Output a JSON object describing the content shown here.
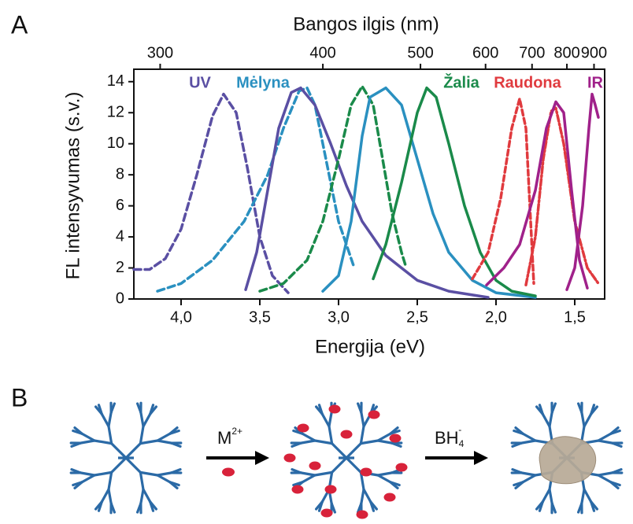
{
  "chart_data": {
    "type": "line",
    "panel_label": "A",
    "top_axis_label": "Bangos ilgis (nm)",
    "xlabel": "Energija (eV)",
    "ylabel": "FL intensyvumas (s.v.)",
    "xlim": [
      4.3,
      1.31
    ],
    "ylim": [
      0,
      14.8
    ],
    "xticks": [
      {
        "value": 4.0,
        "label": "4,0"
      },
      {
        "value": 3.5,
        "label": "3,5"
      },
      {
        "value": 3.0,
        "label": "3,0"
      },
      {
        "value": 2.5,
        "label": "2,5"
      },
      {
        "value": 2.0,
        "label": "2,0"
      },
      {
        "value": 1.5,
        "label": "1,5"
      }
    ],
    "yticks": [
      0,
      2,
      4,
      6,
      8,
      10,
      12,
      14
    ],
    "x2ticks": [
      300,
      400,
      500,
      600,
      700,
      800,
      900
    ],
    "annotations": [
      {
        "text": "UV",
        "color": "#5a4fa3"
      },
      {
        "text": "Mėlyna",
        "color": "#2a90c0"
      },
      {
        "text": "Žalia",
        "color": "#1a8a4a"
      },
      {
        "text": "Raudona",
        "color": "#e03a3e"
      },
      {
        "text": "IR",
        "color": "#a0218a"
      }
    ],
    "series": [
      {
        "color": "#5a4fa3",
        "dash": "9 5",
        "x": [
          4.3,
          4.2,
          4.1,
          4.0,
          3.9,
          3.8,
          3.73,
          3.65,
          3.58,
          3.5,
          3.42,
          3.32
        ],
        "values": [
          1.9,
          1.9,
          2.6,
          4.5,
          8,
          11.8,
          13.2,
          12,
          8.5,
          4,
          1.5,
          0.4
        ]
      },
      {
        "color": "#2a90c0",
        "dash": "9 5",
        "x": [
          4.15,
          4.0,
          3.8,
          3.6,
          3.45,
          3.35,
          3.25,
          3.2,
          3.15,
          3.1,
          3.0,
          2.9
        ],
        "values": [
          0.5,
          1.0,
          2.5,
          5,
          8,
          11,
          13.4,
          13.6,
          12.5,
          10,
          5,
          2
        ]
      },
      {
        "color": "#5a4fa3",
        "dash": "none",
        "x": [
          3.59,
          3.52,
          3.45,
          3.38,
          3.3,
          3.24,
          3.15,
          3.05,
          2.95,
          2.85,
          2.7,
          2.5,
          2.3,
          2.05
        ],
        "values": [
          0.6,
          3,
          7,
          11,
          13.3,
          13.6,
          12.5,
          10,
          7.3,
          5,
          2.8,
          1.2,
          0.5,
          0.1
        ]
      },
      {
        "color": "#1a8a4a",
        "dash": "9 5",
        "x": [
          3.5,
          3.35,
          3.2,
          3.1,
          3.0,
          2.92,
          2.85,
          2.78,
          2.72,
          2.66,
          2.6,
          2.57
        ],
        "values": [
          0.5,
          1,
          2.5,
          5,
          9,
          12.5,
          13.7,
          12.5,
          9,
          5.5,
          3,
          2
        ]
      },
      {
        "color": "#2a90c0",
        "dash": "none",
        "x": [
          3.1,
          3.0,
          2.92,
          2.85,
          2.8,
          2.7,
          2.6,
          2.5,
          2.4,
          2.3,
          2.15,
          2.0,
          1.75
        ],
        "values": [
          0.5,
          1.5,
          5,
          10.5,
          13,
          13.6,
          12.5,
          9,
          5.5,
          3,
          1.2,
          0.4,
          0.1
        ]
      },
      {
        "color": "#1a8a4a",
        "dash": "none",
        "x": [
          2.78,
          2.7,
          2.6,
          2.5,
          2.44,
          2.38,
          2.3,
          2.2,
          2.1,
          2.0,
          1.9,
          1.75
        ],
        "values": [
          1.3,
          3.5,
          7.5,
          12,
          13.6,
          13,
          10,
          6,
          3,
          1.2,
          0.5,
          0.2
        ]
      },
      {
        "color": "#e03a3e",
        "dash": "7 4",
        "x": [
          2.15,
          2.05,
          1.97,
          1.9,
          1.85,
          1.81,
          1.78,
          1.76
        ],
        "values": [
          1.3,
          3,
          6.5,
          11,
          12.9,
          11,
          5,
          1
        ]
      },
      {
        "color": "#e03a3e",
        "dash": "8 3 2 3",
        "x": [
          1.81,
          1.75,
          1.7,
          1.65,
          1.62,
          1.57,
          1.5,
          1.42,
          1.35
        ],
        "values": [
          0.9,
          4,
          9,
          12.1,
          12.3,
          10,
          5,
          2,
          1
        ]
      },
      {
        "color": "#a0218a",
        "dash": "none",
        "x": [
          2.06,
          1.95,
          1.85,
          1.75,
          1.68,
          1.62,
          1.57,
          1.52,
          1.47,
          1.42
        ],
        "values": [
          0.9,
          2,
          3.5,
          7,
          11,
          12.7,
          12,
          7,
          2.5,
          0.7
        ]
      },
      {
        "color": "#a0218a",
        "dash": "none",
        "x": [
          1.55,
          1.5,
          1.45,
          1.41,
          1.39,
          1.37,
          1.35
        ],
        "values": [
          0.6,
          2,
          6,
          11,
          13.2,
          12.5,
          11.7
        ]
      }
    ]
  },
  "panel_b": {
    "label": "B",
    "step1": "M",
    "step1_sup": "2+",
    "step2": "BH",
    "step2_sub": "4",
    "step2_sup": "-"
  }
}
